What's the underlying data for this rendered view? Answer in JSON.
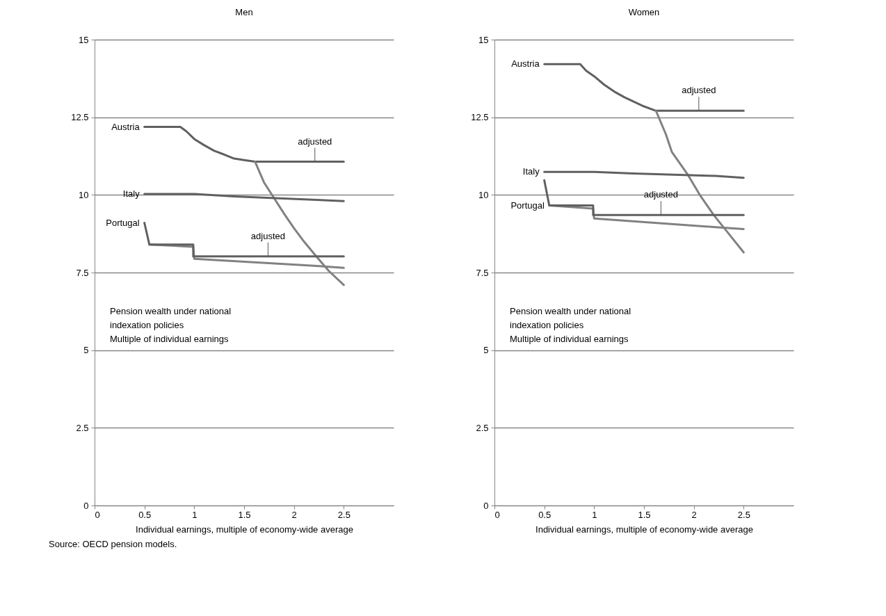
{
  "chart_data": [
    {
      "type": "line",
      "title": "Men",
      "subtitle": "Pension wealth under national\nindexation policies\nMultiple of individual earnings",
      "xlabel": "Individual earnings, multiple of economy-wide average",
      "xlim": [
        0,
        3
      ],
      "xticks": [
        0,
        0.5,
        1,
        1.5,
        2,
        2.5
      ],
      "ylim": [
        0,
        15
      ],
      "yticks": [
        0,
        2.5,
        5,
        7.5,
        10,
        12.5,
        15
      ],
      "grid": "y",
      "series": [
        {
          "color": "#606060",
          "x": [
            0.5,
            0.86,
            0.92,
            1.0,
            1.1,
            1.2,
            1.3,
            1.4,
            1.5,
            1.61,
            2.5
          ],
          "values": [
            12.19,
            12.19,
            12.05,
            11.8,
            11.6,
            11.42,
            11.3,
            11.17,
            11.12,
            11.07,
            11.07
          ]
        },
        {
          "color": "#818181",
          "x": [
            1.61,
            1.7,
            1.8,
            1.9,
            2.0,
            2.1,
            2.23,
            2.35,
            2.5
          ],
          "values": [
            11.07,
            10.4,
            9.9,
            9.4,
            8.93,
            8.5,
            8.0,
            7.55,
            7.1
          ]
        },
        {
          "color": "#606060",
          "x": [
            0.5,
            1.0,
            1.4,
            2.23,
            2.5
          ],
          "values": [
            10.03,
            10.03,
            9.95,
            9.84,
            9.8
          ]
        },
        {
          "color": "#818181",
          "x": [
            0.55,
            0.99,
            1.0,
            2.23,
            2.5
          ],
          "values": [
            8.4,
            8.33,
            7.94,
            7.71,
            7.65
          ]
        },
        {
          "color": "#606060",
          "x": [
            0.5,
            0.55,
            0.99,
            0.99,
            2.5
          ],
          "values": [
            9.1,
            8.4,
            8.4,
            8.02,
            8.02
          ]
        }
      ],
      "annotations": [
        {
          "text": "Austria",
          "x": 0.5,
          "y": 12.19
        },
        {
          "text": "Italy",
          "x": 0.5,
          "y": 10.03
        },
        {
          "text": "Portugal",
          "x": 0.5,
          "y": 9.1
        },
        {
          "text": "adjusted",
          "x": 2.21,
          "y": 11.07
        },
        {
          "text": "adjusted",
          "x": 1.74,
          "y": 8.02
        },
        "Source: OECD pension models."
      ]
    },
    {
      "type": "line",
      "title": "Women",
      "subtitle": "Pension wealth under national\nindexation policies\nMultiple of individual earnings",
      "xlabel": "Individual earnings, multiple of economy-wide average",
      "xlim": [
        0,
        3
      ],
      "xticks": [
        0,
        0.5,
        1,
        1.5,
        2,
        2.5
      ],
      "ylim": [
        0,
        15
      ],
      "yticks": [
        0,
        2.5,
        5,
        7.5,
        10,
        12.5,
        15
      ],
      "grid": "y",
      "series": [
        {
          "color": "#606060",
          "x": [
            0.5,
            0.86,
            0.92,
            1.0,
            1.1,
            1.2,
            1.3,
            1.4,
            1.5,
            1.62,
            2.5
          ],
          "values": [
            14.21,
            14.21,
            14.0,
            13.82,
            13.55,
            13.33,
            13.15,
            13.0,
            12.85,
            12.71,
            12.71
          ]
        },
        {
          "color": "#818181",
          "x": [
            1.62,
            1.72,
            1.78,
            1.94,
            2.06,
            2.2,
            2.35,
            2.5
          ],
          "values": [
            12.71,
            11.95,
            11.38,
            10.65,
            10.0,
            9.35,
            8.75,
            8.15
          ]
        },
        {
          "color": "#606060",
          "x": [
            0.5,
            1.0,
            1.39,
            2.22,
            2.5
          ],
          "values": [
            10.74,
            10.74,
            10.69,
            10.61,
            10.55
          ]
        },
        {
          "color": "#818181",
          "x": [
            0.55,
            0.99,
            1.0,
            2.22,
            2.5
          ],
          "values": [
            9.66,
            9.56,
            9.24,
            8.96,
            8.9
          ]
        },
        {
          "color": "#606060",
          "x": [
            0.5,
            0.55,
            0.99,
            0.99,
            2.5
          ],
          "values": [
            10.47,
            9.66,
            9.66,
            9.35,
            9.35
          ]
        }
      ],
      "annotations": [
        {
          "text": "Austria",
          "x": 0.5,
          "y": 14.21
        },
        {
          "text": "Italy",
          "x": 0.5,
          "y": 10.74
        },
        {
          "text": "Portugal",
          "x": 0.55,
          "y": 9.66
        },
        {
          "text": "adjusted",
          "x": 2.05,
          "y": 12.71
        },
        {
          "text": "adjusted",
          "x": 1.67,
          "y": 9.35
        }
      ]
    }
  ]
}
